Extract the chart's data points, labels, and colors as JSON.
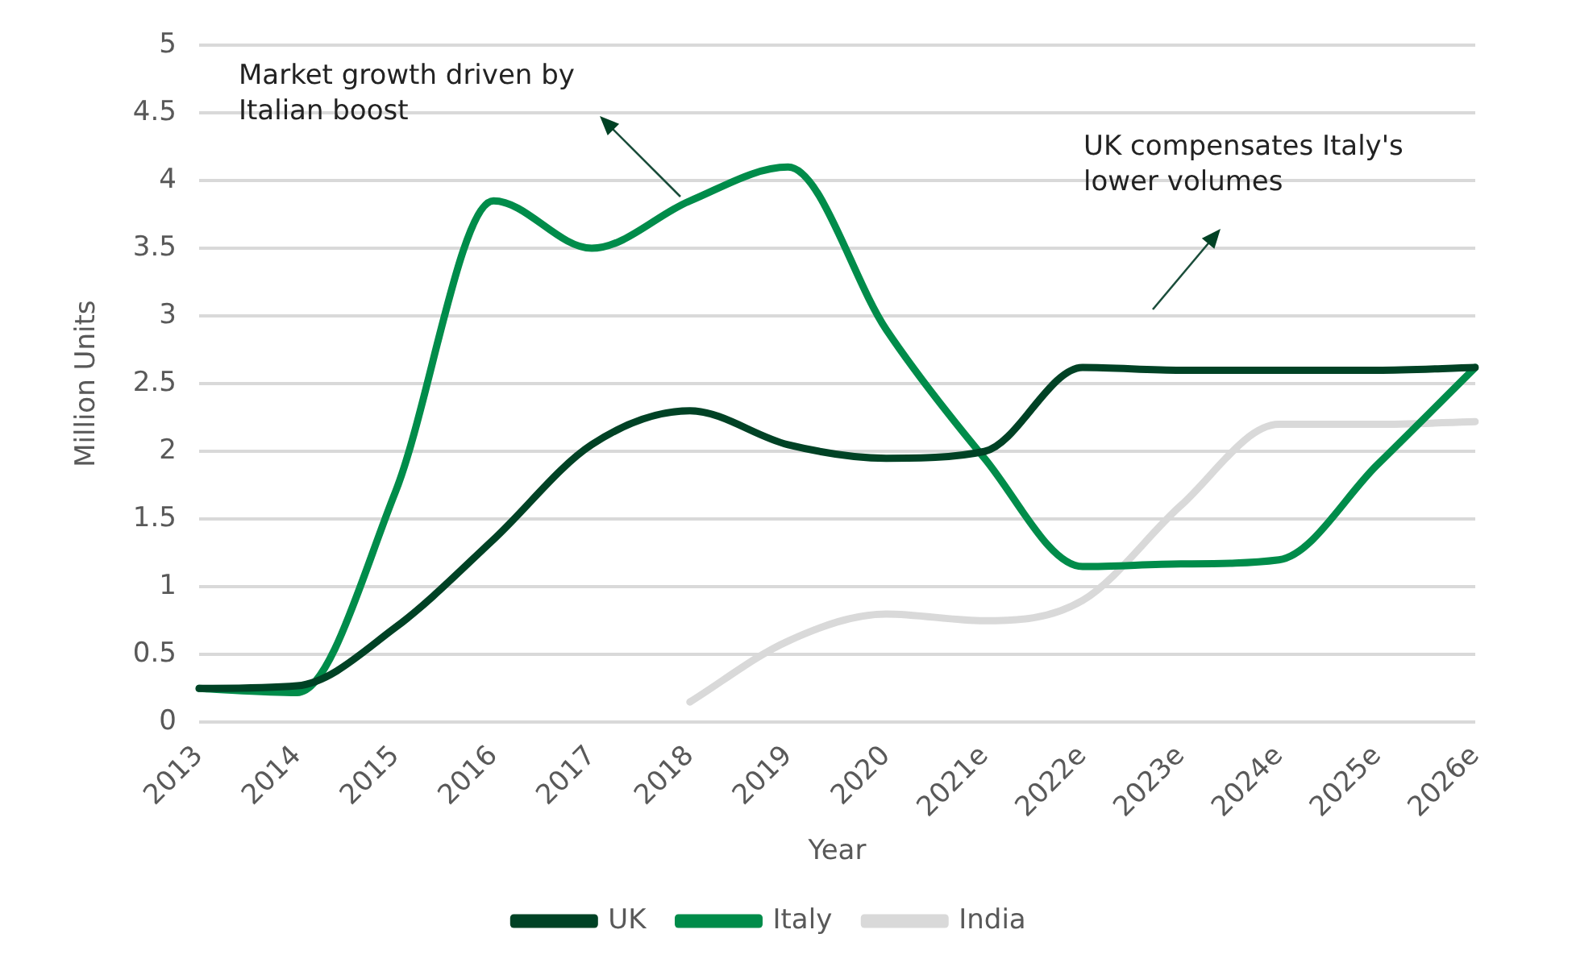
{
  "chart_data": {
    "type": "line",
    "xlabel": "Year",
    "ylabel": "Million Units",
    "categories": [
      "2013",
      "2014",
      "2015",
      "2016",
      "2017",
      "2018",
      "2019",
      "2020",
      "2021e",
      "2022e",
      "2023e",
      "2024e",
      "2025e",
      "2026e"
    ],
    "series": [
      {
        "name": "UK",
        "color": "#004225",
        "values": [
          0.25,
          0.27,
          0.7,
          1.35,
          2.05,
          2.3,
          2.05,
          1.95,
          2.0,
          2.62,
          2.6,
          2.6,
          2.6,
          2.62
        ]
      },
      {
        "name": "Italy",
        "color": "#008c4a",
        "values": [
          0.25,
          0.22,
          1.7,
          3.85,
          3.5,
          3.85,
          4.1,
          2.9,
          1.95,
          1.15,
          1.17,
          1.2,
          1.9,
          2.62
        ]
      },
      {
        "name": "India",
        "color": "#d9d9d9",
        "values": [
          null,
          null,
          null,
          null,
          null,
          0.15,
          0.6,
          0.8,
          0.75,
          0.9,
          1.6,
          2.2,
          2.2,
          2.22
        ]
      }
    ],
    "ylim": [
      0,
      5
    ],
    "yticks": [
      0,
      0.5,
      1,
      1.5,
      2,
      2.5,
      3,
      3.5,
      4,
      4.5,
      5
    ],
    "grid": "y",
    "legend": "bottom",
    "marker": "none",
    "line_style": "solid",
    "annotations": [
      "Market growth driven by Italian boost",
      "UK compensates Italy's lower volumes"
    ]
  }
}
